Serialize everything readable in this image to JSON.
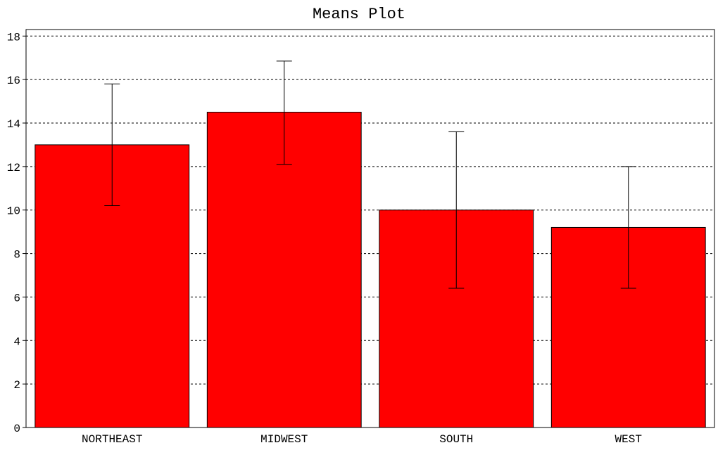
{
  "chart_data": {
    "type": "bar",
    "title": "Means Plot",
    "xlabel": "",
    "ylabel": "",
    "categories": [
      "NORTHEAST",
      "MIDWEST",
      "SOUTH",
      "WEST"
    ],
    "values": [
      13.0,
      14.5,
      10.0,
      9.2
    ],
    "error_low": [
      10.2,
      12.1,
      6.4,
      6.4
    ],
    "error_high": [
      15.8,
      16.85,
      13.6,
      12.0
    ],
    "ylim": [
      0,
      18.3
    ],
    "yticks": [
      0,
      2,
      4,
      6,
      8,
      10,
      12,
      14,
      16,
      18
    ],
    "grid": true,
    "legend": "none",
    "bar_color": "#ff0000"
  }
}
